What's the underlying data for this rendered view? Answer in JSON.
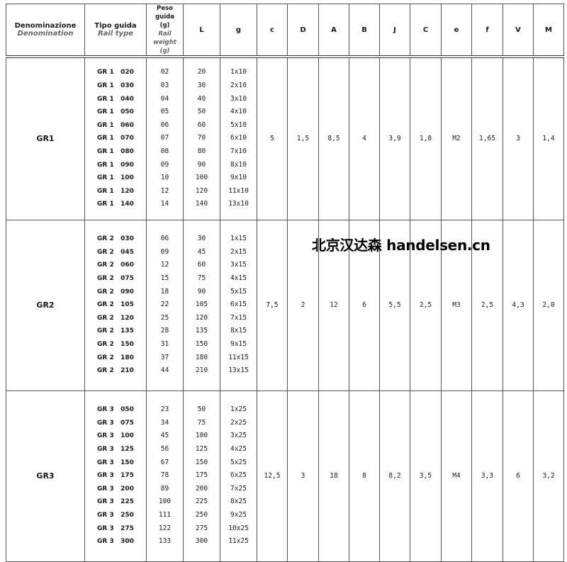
{
  "headers": {
    "denominazione": "Denominazione",
    "denomination": "Denomination",
    "tipo_guida": "Tipo guida",
    "rail_type": "Rail type",
    "peso_guida": "Peso guida",
    "peso_unit": "(g)",
    "rail_weight": "Rail weight",
    "rail_weight_unit": "(g)",
    "cols": [
      "L",
      "g",
      "c",
      "D",
      "A",
      "B",
      "J",
      "C",
      "e",
      "f",
      "V",
      "M"
    ]
  },
  "groups": [
    {
      "name": "GR1",
      "types": [
        "GR 1   020",
        "GR 1   030",
        "GR 1   040",
        "GR 1   050",
        "GR 1   060",
        "GR 1   070",
        "GR 1   080",
        "GR 1   090",
        "GR 1   100",
        "GR 1   120",
        "GR 1   140"
      ],
      "weights": [
        "02",
        "03",
        "04",
        "05",
        "06",
        "07",
        "08",
        "09",
        "10",
        "12",
        "14"
      ],
      "L": [
        "20",
        "30",
        "40",
        "50",
        "60",
        "70",
        "80",
        "90",
        "100",
        "120",
        "140"
      ],
      "g": [
        "1x10",
        "2x10",
        "3x10",
        "4x10",
        "5x10",
        "6x10",
        "7x10",
        "8x10",
        "9x10",
        "11x10",
        "13x10"
      ],
      "values": [
        "5",
        "1,5",
        "8,5",
        "4",
        "3,9",
        "1,8",
        "M2",
        "1,65",
        "3",
        "1,4"
      ]
    },
    {
      "name": "GR2",
      "types": [
        "GR 2   030",
        "GR 2   045",
        "GR 2   060",
        "GR 2   075",
        "GR 2   090",
        "GR 2   105",
        "GR 2   120",
        "GR 2   135",
        "GR 2   150",
        "GR 2   180",
        "GR 2   210"
      ],
      "weights": [
        "06",
        "09",
        "12",
        "15",
        "18",
        "22",
        "25",
        "28",
        "31",
        "37",
        "44"
      ],
      "L": [
        "30",
        "45",
        "60",
        "75",
        "90",
        "105",
        "120",
        "135",
        "150",
        "180",
        "210"
      ],
      "g": [
        "1x15",
        "2x15",
        "3x15",
        "4x15",
        "5x15",
        "6x15",
        "7x15",
        "8x15",
        "9x15",
        "11x15",
        "13x15"
      ],
      "values": [
        "7,5",
        "2",
        "12",
        "6",
        "5,5",
        "2,5",
        "M3",
        "2,5",
        "4,3",
        "2,0"
      ]
    },
    {
      "name": "GR3",
      "types": [
        "GR 3   050",
        "GR 3   075",
        "GR 3   100",
        "GR 3   125",
        "GR 3   150",
        "GR 3   175",
        "GR 3   200",
        "GR 3   225",
        "GR 3   250",
        "GR 3   275",
        "GR 3   300"
      ],
      "weights": [
        "23",
        "34",
        "45",
        "56",
        "67",
        "78",
        "89",
        "100",
        "111",
        "122",
        "133"
      ],
      "L": [
        "50",
        "75",
        "100",
        "125",
        "150",
        "175",
        "200",
        "225",
        "250",
        "275",
        "300"
      ],
      "g": [
        "1x25",
        "2x25",
        "3x25",
        "4x25",
        "5x25",
        "6x25",
        "7x25",
        "8x25",
        "9x25",
        "10x25",
        "11x25"
      ],
      "values": [
        "12,5",
        "3",
        "18",
        "8",
        "8,2",
        "3,5",
        "M4",
        "3,3",
        "6",
        "3,2"
      ]
    }
  ],
  "watermark": "北京汉达森 handelsen.cn"
}
